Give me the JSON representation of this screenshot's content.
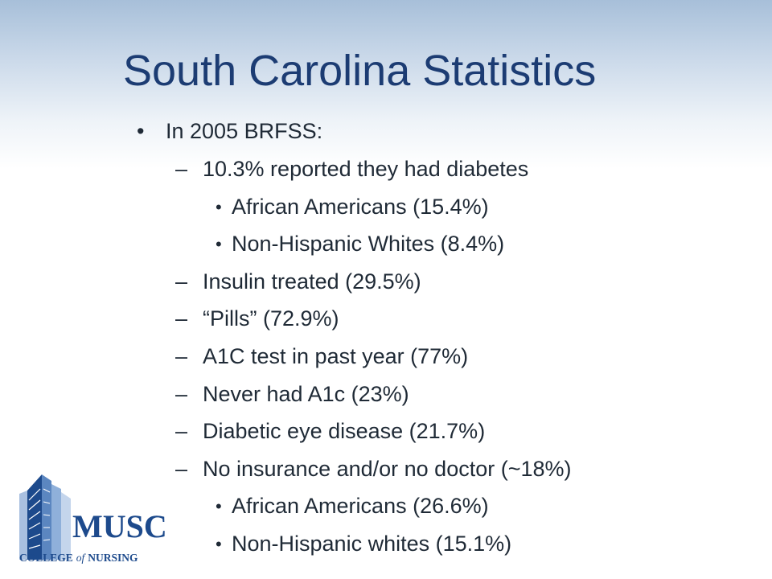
{
  "slide": {
    "title": "South Carolina Statistics",
    "items": [
      {
        "level": 1,
        "marker": "•",
        "text": "In 2005 BRFSS:"
      },
      {
        "level": 2,
        "marker": "–",
        "text": "10.3% reported they had diabetes"
      },
      {
        "level": 3,
        "marker": "•",
        "text": "African Americans (15.4%)"
      },
      {
        "level": 3,
        "marker": "•",
        "text": "Non-Hispanic Whites (8.4%)"
      },
      {
        "level": 2,
        "marker": "–",
        "text": "Insulin treated (29.5%)"
      },
      {
        "level": 2,
        "marker": "–",
        "text": "“Pills” (72.9%)"
      },
      {
        "level": 2,
        "marker": "–",
        "text": "A1C test in past year (77%)"
      },
      {
        "level": 2,
        "marker": "–",
        "text": "Never had A1c (23%)"
      },
      {
        "level": 2,
        "marker": "–",
        "text": "Diabetic eye disease (21.7%)"
      },
      {
        "level": 2,
        "marker": "–",
        "text": "No insurance and/or no doctor (~18%)"
      },
      {
        "level": 3,
        "marker": "•",
        "text": "African Americans (26.6%)"
      },
      {
        "level": 3,
        "marker": "•",
        "text": "Non-Hispanic whites (15.1%)"
      }
    ]
  },
  "logo": {
    "name": "MUSC",
    "subtitle_pre": "COLLEGE",
    "subtitle_of": "of",
    "subtitle_post": "NURSING"
  },
  "colors": {
    "title": "#1c3c73",
    "text": "#1f2a36",
    "logo_blue": "#1d4a8c",
    "logo_light": "#5b86c0"
  }
}
